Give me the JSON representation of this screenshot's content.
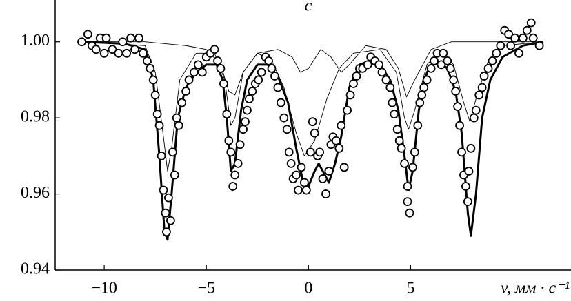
{
  "chart_data": {
    "type": "scatter",
    "title": "c",
    "x_label": "v, мм · c⁻¹",
    "xlim": [
      -12.4,
      12.85
    ],
    "ylim": [
      0.94,
      1.011
    ],
    "xticks": [
      {
        "value": -10,
        "label": "−10"
      },
      {
        "value": -5,
        "label": "−5"
      },
      0,
      5
    ],
    "yticks": [
      0.94,
      0.96,
      0.98,
      {
        "value": 1,
        "label": "1.00"
      }
    ],
    "series": [
      {
        "style": "markers",
        "color": "#000000",
        "x": [
          -11.1,
          -10.8,
          -10.6,
          -10.4,
          -10.2,
          -10.0,
          -9.9,
          -9.6,
          -9.3,
          -9.1,
          -8.9,
          -8.7,
          -8.5,
          -8.3,
          -8.1,
          -7.9,
          -7.75,
          -7.6,
          -7.5,
          -7.4,
          -7.3,
          -7.2,
          -7.1,
          -7.0,
          -6.95,
          -6.85,
          -6.75,
          -6.65,
          -6.55,
          -6.45,
          -6.35,
          -6.2,
          -6.0,
          -5.85,
          -5.6,
          -5.4,
          -5.2,
          -5.0,
          -4.8,
          -4.6,
          -4.45,
          -4.3,
          -4.15,
          -4.0,
          -3.9,
          -3.8,
          -3.7,
          -3.6,
          -3.45,
          -3.35,
          -3.2,
          -3.1,
          -3.0,
          -2.9,
          -2.75,
          -2.6,
          -2.45,
          -2.3,
          -2.1,
          -1.95,
          -1.8,
          -1.65,
          -1.5,
          -1.35,
          -1.2,
          -1.05,
          -0.95,
          -0.85,
          -0.75,
          -0.6,
          -0.5,
          -0.35,
          -0.2,
          -0.1,
          0.1,
          0.2,
          0.3,
          0.45,
          0.55,
          0.7,
          0.85,
          1.0,
          1.1,
          1.2,
          1.35,
          1.5,
          1.6,
          1.75,
          1.9,
          2.05,
          2.2,
          2.35,
          2.5,
          2.65,
          2.9,
          3.05,
          3.25,
          3.45,
          3.6,
          3.8,
          4.0,
          4.1,
          4.2,
          4.35,
          4.45,
          4.55,
          4.7,
          4.85,
          4.85,
          4.95,
          5.1,
          5.2,
          5.35,
          5.45,
          5.55,
          5.65,
          5.8,
          6.0,
          6.15,
          6.3,
          6.5,
          6.6,
          6.8,
          6.95,
          7.1,
          7.2,
          7.3,
          7.4,
          7.5,
          7.6,
          7.7,
          7.8,
          7.85,
          7.95,
          8.1,
          8.2,
          8.35,
          8.5,
          8.6,
          8.8,
          9.0,
          9.2,
          9.4,
          9.6,
          9.8,
          9.9,
          10.1,
          10.3,
          10.5,
          10.7,
          10.9,
          11.0,
          11.3
        ],
        "y": [
          1.0,
          1.002,
          0.999,
          0.998,
          1.001,
          0.997,
          1.001,
          0.998,
          0.997,
          1.0,
          0.997,
          1.001,
          0.998,
          1.001,
          0.997,
          0.995,
          0.993,
          0.99,
          0.986,
          0.981,
          0.978,
          0.97,
          0.961,
          0.955,
          0.95,
          0.959,
          0.953,
          0.971,
          0.965,
          0.98,
          0.978,
          0.984,
          0.987,
          0.99,
          0.992,
          0.994,
          0.992,
          0.996,
          0.997,
          0.998,
          0.995,
          0.993,
          0.989,
          0.981,
          0.974,
          0.971,
          0.962,
          0.965,
          0.968,
          0.973,
          0.977,
          0.979,
          0.982,
          0.985,
          0.987,
          0.989,
          0.99,
          0.992,
          0.996,
          0.995,
          0.993,
          0.991,
          0.988,
          0.984,
          0.98,
          0.977,
          0.971,
          0.968,
          0.964,
          0.965,
          0.961,
          0.967,
          0.963,
          0.961,
          0.971,
          0.979,
          0.976,
          0.97,
          0.971,
          0.964,
          0.96,
          0.966,
          0.973,
          0.975,
          0.974,
          0.972,
          0.978,
          0.967,
          0.982,
          0.986,
          0.989,
          0.991,
          0.993,
          0.993,
          0.994,
          0.996,
          0.995,
          0.994,
          0.992,
          0.99,
          0.988,
          0.984,
          0.981,
          0.977,
          0.974,
          0.972,
          0.968,
          0.962,
          0.958,
          0.955,
          0.967,
          0.971,
          0.978,
          0.984,
          0.986,
          0.988,
          0.99,
          0.993,
          0.995,
          0.997,
          0.994,
          0.997,
          0.995,
          0.993,
          0.99,
          0.987,
          0.983,
          0.978,
          0.971,
          0.965,
          0.962,
          0.958,
          0.966,
          0.972,
          0.98,
          0.982,
          0.986,
          0.988,
          0.991,
          0.993,
          0.995,
          0.997,
          0.999,
          1.003,
          1.002,
          0.999,
          1.001,
          0.997,
          1.001,
          1.003,
          1.005,
          1.001,
          0.999
        ]
      },
      {
        "style": "line",
        "color": "#000000",
        "line_width": 3,
        "x": [
          -11,
          -9,
          -8,
          -7.6,
          -7.3,
          -7.05,
          -6.9,
          -6.7,
          -6.4,
          -6,
          -5.5,
          -5,
          -4.5,
          -4.2,
          -4.0,
          -3.8,
          -3.6,
          -3.3,
          -3,
          -2.5,
          -2,
          -1.5,
          -1,
          -0.6,
          -0.3,
          0,
          0.3,
          0.5,
          0.7,
          1.0,
          1.3,
          1.6,
          2,
          2.5,
          3,
          3.5,
          4,
          4.4,
          4.7,
          4.9,
          5.1,
          5.4,
          5.8,
          6.3,
          6.8,
          7.2,
          7.5,
          7.8,
          7.95,
          8.2,
          8.5,
          8.9,
          9.5,
          10.5,
          11.5
        ],
        "y": [
          1.0,
          0.9995,
          0.998,
          0.99,
          0.97,
          0.95,
          0.948,
          0.96,
          0.98,
          0.988,
          0.992,
          0.994,
          0.994,
          0.99,
          0.98,
          0.966,
          0.968,
          0.982,
          0.99,
          0.994,
          0.994,
          0.991,
          0.984,
          0.972,
          0.964,
          0.962,
          0.966,
          0.968,
          0.966,
          0.963,
          0.968,
          0.975,
          0.988,
          0.994,
          0.995,
          0.994,
          0.99,
          0.982,
          0.97,
          0.961,
          0.966,
          0.982,
          0.992,
          0.995,
          0.993,
          0.987,
          0.976,
          0.955,
          0.949,
          0.96,
          0.98,
          0.99,
          0.996,
          0.999,
          1.0
        ]
      },
      {
        "style": "line",
        "color": "#000000",
        "line_width": 0.9,
        "x": [
          -11,
          -8,
          -7.5,
          -7.1,
          -6.9,
          -6.7,
          -6.3,
          -5.5,
          -4.6,
          -4.1,
          -3.8,
          -3.6,
          -3.2,
          -2.5,
          -1.8,
          -1.2,
          -0.6,
          -0.2,
          0.3,
          0.9,
          1.5,
          2.2,
          3.5,
          4.3,
          4.7,
          4.9,
          5.2,
          5.8,
          6.5,
          7.1,
          7.6,
          7.9,
          8.2,
          8.8,
          9.5,
          11.5
        ],
        "y": [
          1.0,
          0.999,
          0.992,
          0.975,
          0.966,
          0.972,
          0.99,
          0.997,
          0.997,
          0.99,
          0.978,
          0.98,
          0.992,
          0.997,
          0.995,
          0.988,
          0.976,
          0.97,
          0.974,
          0.985,
          0.993,
          0.997,
          0.998,
          0.992,
          0.98,
          0.977,
          0.982,
          0.994,
          0.998,
          0.994,
          0.984,
          0.979,
          0.985,
          0.995,
          0.999,
          1.0
        ]
      },
      {
        "style": "line",
        "color": "#000000",
        "line_width": 0.9,
        "x": [
          -11,
          -8,
          -6,
          -5,
          -4.3,
          -3.9,
          -3.6,
          -3.2,
          -2.5,
          -1.5,
          -0.8,
          -0.4,
          0,
          0.6,
          1.1,
          1.6,
          2.0,
          2.8,
          3.8,
          4.4,
          4.8,
          5.2,
          6,
          7,
          11.5
        ],
        "y": [
          1.0,
          1.0,
          0.999,
          0.998,
          0.994,
          0.987,
          0.986,
          0.992,
          0.997,
          0.998,
          0.996,
          0.992,
          0.993,
          0.998,
          0.996,
          0.992,
          0.994,
          0.999,
          0.998,
          0.993,
          0.9855,
          0.99,
          0.998,
          1.0,
          1.0
        ]
      }
    ]
  }
}
